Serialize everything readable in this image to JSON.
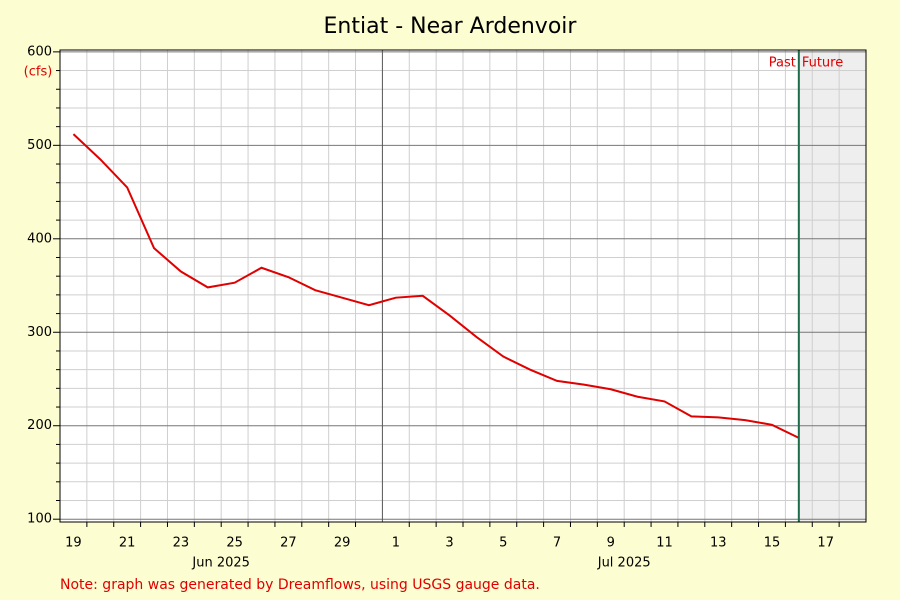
{
  "chart_data": {
    "type": "line",
    "title": "Entiat - Near Ardenvoir",
    "y_unit_label": "(cfs)",
    "note": "Note: graph was generated by Dreamflows, using USGS gauge data.",
    "past_label": "Past",
    "future_label": "Future",
    "past_future_divider": "2025-07-16",
    "color": "#e00000",
    "x": [
      "2025-06-19",
      "2025-06-20",
      "2025-06-21",
      "2025-06-22",
      "2025-06-23",
      "2025-06-24",
      "2025-06-25",
      "2025-06-26",
      "2025-06-27",
      "2025-06-28",
      "2025-06-29",
      "2025-06-30",
      "2025-07-01",
      "2025-07-02",
      "2025-07-03",
      "2025-07-04",
      "2025-07-05",
      "2025-07-06",
      "2025-07-07",
      "2025-07-08",
      "2025-07-09",
      "2025-07-10",
      "2025-07-11",
      "2025-07-12",
      "2025-07-13",
      "2025-07-14",
      "2025-07-15",
      "2025-07-16"
    ],
    "values": [
      512,
      485,
      455,
      390,
      365,
      348,
      353,
      369,
      359,
      345,
      337,
      329,
      337,
      339,
      318,
      295,
      274,
      260,
      248,
      244,
      239,
      231,
      226,
      210,
      209,
      206,
      201,
      187
    ],
    "xlim": [
      "2025-06-19",
      "2025-07-18"
    ],
    "xticks": [
      {
        "value": "2025-06-19",
        "label": "19"
      },
      {
        "value": "2025-06-21",
        "label": "21"
      },
      {
        "value": "2025-06-23",
        "label": "23"
      },
      {
        "value": "2025-06-25",
        "label": "25"
      },
      {
        "value": "2025-06-27",
        "label": "27"
      },
      {
        "value": "2025-06-29",
        "label": "29"
      },
      {
        "value": "2025-07-01",
        "label": "1"
      },
      {
        "value": "2025-07-03",
        "label": "3"
      },
      {
        "value": "2025-07-05",
        "label": "5"
      },
      {
        "value": "2025-07-07",
        "label": "7"
      },
      {
        "value": "2025-07-09",
        "label": "9"
      },
      {
        "value": "2025-07-11",
        "label": "11"
      },
      {
        "value": "2025-07-13",
        "label": "13"
      },
      {
        "value": "2025-07-15",
        "label": "15"
      },
      {
        "value": "2025-07-17",
        "label": "17"
      }
    ],
    "xminorticks": [
      "2025-06-20",
      "2025-06-21",
      "2025-06-22",
      "2025-06-23",
      "2025-06-24",
      "2025-06-25",
      "2025-06-26",
      "2025-06-27",
      "2025-06-28",
      "2025-06-29",
      "2025-06-30",
      "2025-07-02",
      "2025-07-03",
      "2025-07-04",
      "2025-07-05",
      "2025-07-06",
      "2025-07-07",
      "2025-07-08",
      "2025-07-09",
      "2025-07-10",
      "2025-07-11",
      "2025-07-12",
      "2025-07-13",
      "2025-07-14",
      "2025-07-15",
      "2025-07-16",
      "2025-07-17",
      "2025-07-18"
    ],
    "month_labels": [
      {
        "value": "2025-06",
        "label": "Jun 2025"
      },
      {
        "value": "2025-07",
        "label": "Jul 2025"
      }
    ],
    "ylim": [
      97,
      602
    ],
    "yticks": [
      100,
      200,
      300,
      400,
      500,
      600
    ],
    "yminorticks": [
      120,
      140,
      160,
      180,
      220,
      240,
      260,
      280,
      320,
      340,
      360,
      380,
      420,
      440,
      460,
      480,
      520,
      540,
      560,
      580
    ],
    "grid": true
  }
}
